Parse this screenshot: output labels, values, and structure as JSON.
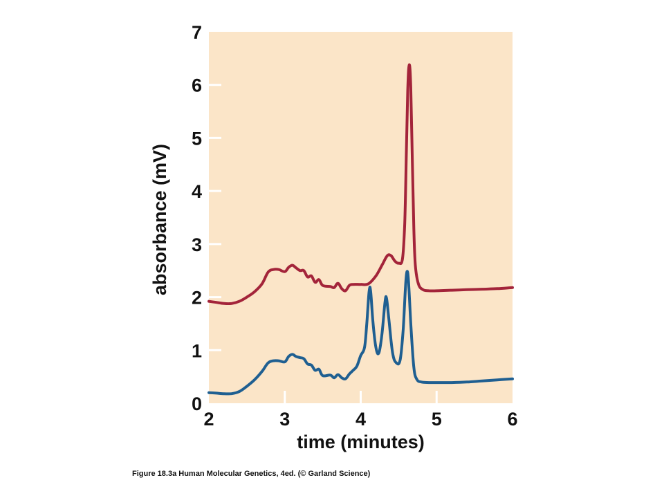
{
  "chart_data": {
    "type": "line",
    "title": "",
    "xlabel": "time (minutes)",
    "ylabel": "absorbance (mV)",
    "xlim": [
      2,
      6
    ],
    "ylim": [
      0,
      7
    ],
    "x_ticks": [
      2,
      3,
      4,
      5,
      6
    ],
    "y_ticks": [
      0,
      1,
      2,
      3,
      4,
      5,
      6,
      7
    ],
    "grid": false,
    "legend": "none",
    "background_color": "#fbe5c8",
    "series": [
      {
        "color": "#a3243a",
        "points": [
          [
            2.0,
            1.92
          ],
          [
            2.1,
            1.9
          ],
          [
            2.2,
            1.88
          ],
          [
            2.3,
            1.88
          ],
          [
            2.4,
            1.92
          ],
          [
            2.5,
            2.0
          ],
          [
            2.6,
            2.1
          ],
          [
            2.7,
            2.25
          ],
          [
            2.78,
            2.47
          ],
          [
            2.85,
            2.52
          ],
          [
            2.92,
            2.52
          ],
          [
            3.0,
            2.48
          ],
          [
            3.05,
            2.56
          ],
          [
            3.1,
            2.6
          ],
          [
            3.15,
            2.55
          ],
          [
            3.2,
            2.5
          ],
          [
            3.25,
            2.5
          ],
          [
            3.3,
            2.38
          ],
          [
            3.35,
            2.4
          ],
          [
            3.4,
            2.28
          ],
          [
            3.45,
            2.33
          ],
          [
            3.5,
            2.22
          ],
          [
            3.6,
            2.2
          ],
          [
            3.65,
            2.18
          ],
          [
            3.7,
            2.26
          ],
          [
            3.75,
            2.16
          ],
          [
            3.8,
            2.12
          ],
          [
            3.85,
            2.22
          ],
          [
            3.9,
            2.24
          ],
          [
            4.0,
            2.24
          ],
          [
            4.1,
            2.25
          ],
          [
            4.2,
            2.4
          ],
          [
            4.28,
            2.6
          ],
          [
            4.35,
            2.78
          ],
          [
            4.4,
            2.78
          ],
          [
            4.45,
            2.68
          ],
          [
            4.5,
            2.64
          ],
          [
            4.55,
            2.72
          ],
          [
            4.58,
            3.4
          ],
          [
            4.6,
            4.6
          ],
          [
            4.62,
            5.9
          ],
          [
            4.64,
            6.38
          ],
          [
            4.66,
            5.95
          ],
          [
            4.68,
            4.6
          ],
          [
            4.7,
            3.3
          ],
          [
            4.72,
            2.6
          ],
          [
            4.76,
            2.25
          ],
          [
            4.82,
            2.14
          ],
          [
            4.9,
            2.12
          ],
          [
            5.0,
            2.12
          ],
          [
            5.2,
            2.13
          ],
          [
            5.4,
            2.14
          ],
          [
            5.6,
            2.15
          ],
          [
            5.8,
            2.16
          ],
          [
            6.0,
            2.18
          ]
        ]
      },
      {
        "color": "#1f5f91",
        "points": [
          [
            2.0,
            0.2
          ],
          [
            2.1,
            0.19
          ],
          [
            2.2,
            0.18
          ],
          [
            2.3,
            0.18
          ],
          [
            2.4,
            0.22
          ],
          [
            2.5,
            0.32
          ],
          [
            2.6,
            0.44
          ],
          [
            2.7,
            0.6
          ],
          [
            2.78,
            0.76
          ],
          [
            2.85,
            0.8
          ],
          [
            2.92,
            0.8
          ],
          [
            3.0,
            0.78
          ],
          [
            3.05,
            0.88
          ],
          [
            3.1,
            0.92
          ],
          [
            3.15,
            0.88
          ],
          [
            3.2,
            0.86
          ],
          [
            3.25,
            0.84
          ],
          [
            3.3,
            0.74
          ],
          [
            3.35,
            0.72
          ],
          [
            3.4,
            0.62
          ],
          [
            3.45,
            0.64
          ],
          [
            3.5,
            0.52
          ],
          [
            3.6,
            0.53
          ],
          [
            3.65,
            0.48
          ],
          [
            3.7,
            0.54
          ],
          [
            3.75,
            0.48
          ],
          [
            3.8,
            0.46
          ],
          [
            3.85,
            0.55
          ],
          [
            3.9,
            0.62
          ],
          [
            3.95,
            0.7
          ],
          [
            4.0,
            0.9
          ],
          [
            4.05,
            1.05
          ],
          [
            4.08,
            1.5
          ],
          [
            4.11,
            2.1
          ],
          [
            4.13,
            2.12
          ],
          [
            4.16,
            1.55
          ],
          [
            4.2,
            1.05
          ],
          [
            4.24,
            0.95
          ],
          [
            4.28,
            1.3
          ],
          [
            4.32,
            1.9
          ],
          [
            4.34,
            1.98
          ],
          [
            4.37,
            1.6
          ],
          [
            4.42,
            0.95
          ],
          [
            4.47,
            0.76
          ],
          [
            4.52,
            0.82
          ],
          [
            4.56,
            1.4
          ],
          [
            4.59,
            2.2
          ],
          [
            4.61,
            2.48
          ],
          [
            4.63,
            2.3
          ],
          [
            4.66,
            1.5
          ],
          [
            4.7,
            0.68
          ],
          [
            4.74,
            0.45
          ],
          [
            4.8,
            0.4
          ],
          [
            4.9,
            0.39
          ],
          [
            5.0,
            0.39
          ],
          [
            5.2,
            0.39
          ],
          [
            5.4,
            0.4
          ],
          [
            5.6,
            0.42
          ],
          [
            5.8,
            0.44
          ],
          [
            6.0,
            0.46
          ]
        ]
      }
    ]
  },
  "caption": "Figure 18.3a  Human Molecular Genetics, 4ed. (© Garland Science)"
}
